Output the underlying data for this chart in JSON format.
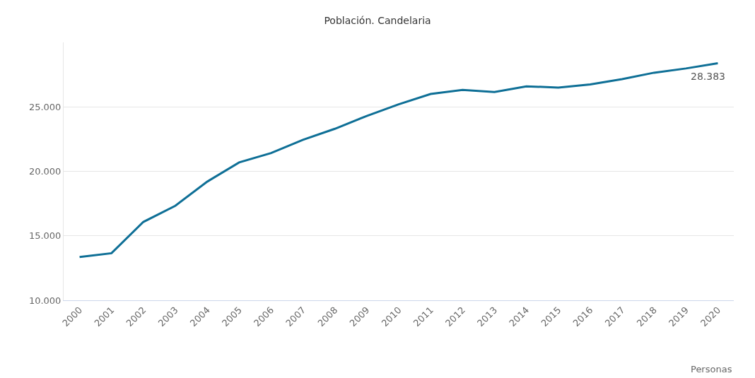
{
  "chart_data": {
    "type": "line",
    "title": "Población. Candelaria",
    "categories": [
      "2000",
      "2001",
      "2002",
      "2003",
      "2004",
      "2005",
      "2006",
      "2007",
      "2008",
      "2009",
      "2010",
      "2011",
      "2012",
      "2013",
      "2014",
      "2015",
      "2016",
      "2017",
      "2018",
      "2019",
      "2020"
    ],
    "series": [
      {
        "color": "#0e6f96",
        "values": [
          13350,
          13650,
          16080,
          17330,
          19200,
          20690,
          21420,
          22450,
          23300,
          24300,
          25200,
          26000,
          26310,
          26150,
          26590,
          26500,
          26740,
          27150,
          27650,
          27980,
          28383
        ],
        "value_labels": [
          null,
          null,
          null,
          null,
          null,
          null,
          null,
          null,
          null,
          null,
          null,
          null,
          null,
          null,
          null,
          null,
          null,
          null,
          null,
          null,
          "28.383"
        ]
      }
    ],
    "ylim": [
      10000,
      30000
    ],
    "yticks": [
      {
        "value": 10000,
        "label": "10.000"
      },
      {
        "value": 15000,
        "label": "15.000"
      },
      {
        "value": 20000,
        "label": "20.000"
      },
      {
        "value": 25000,
        "label": "25.000"
      }
    ],
    "grid": "y",
    "marker": "none",
    "line_style": "solid",
    "annotations": [
      "Personas"
    ]
  }
}
